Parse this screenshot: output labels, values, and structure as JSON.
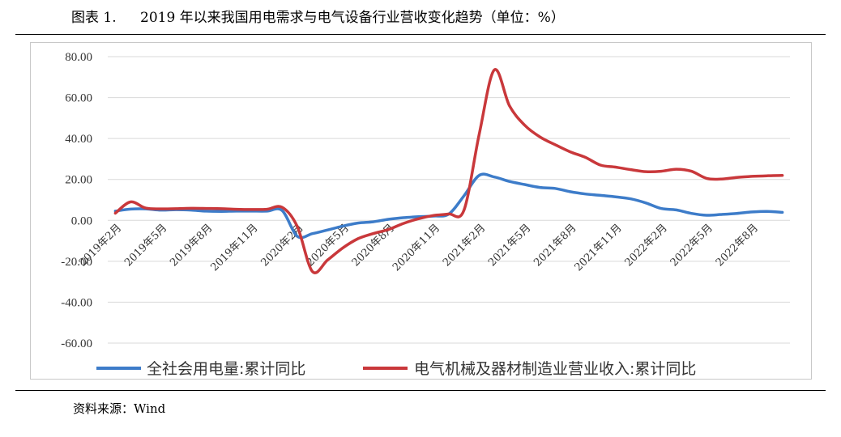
{
  "header": {
    "figure_label": "图表 1.",
    "title": "2019 年以来我国用电需求与电气设备行业营收变化趋势（单位：%）"
  },
  "footer": {
    "source": "资料来源：Wind"
  },
  "chart_data": {
    "type": "line",
    "ylim": [
      -60,
      80
    ],
    "yticks": [
      "80.00",
      "60.00",
      "40.00",
      "20.00",
      "0.00",
      "-20.00",
      "-40.00",
      "-60.00"
    ],
    "ytick_values": [
      80,
      60,
      40,
      20,
      0,
      -20,
      -40,
      -60
    ],
    "grid": true,
    "legend_position": "bottom",
    "x_ticks": [
      "2019年2月",
      "2019年5月",
      "2019年8月",
      "2019年11月",
      "2020年2月",
      "2020年5月",
      "2020年8月",
      "2020年11月",
      "2021年2月",
      "2021年5月",
      "2021年8月",
      "2021年11月",
      "2022年2月",
      "2022年5月",
      "2022年8月"
    ],
    "x": [
      "2019-02",
      "2019-03",
      "2019-04",
      "2019-05",
      "2019-06",
      "2019-07",
      "2019-08",
      "2019-09",
      "2019-10",
      "2019-11",
      "2019-12",
      "2020-01",
      "2020-02",
      "2020-03",
      "2020-04",
      "2020-05",
      "2020-06",
      "2020-07",
      "2020-08",
      "2020-09",
      "2020-10",
      "2020-11",
      "2020-12",
      "2021-01",
      "2021-02",
      "2021-03",
      "2021-04",
      "2021-05",
      "2021-06",
      "2021-07",
      "2021-08",
      "2021-09",
      "2021-10",
      "2021-11",
      "2021-12",
      "2022-01",
      "2022-02",
      "2022-03",
      "2022-04",
      "2022-05",
      "2022-06",
      "2022-07",
      "2022-08",
      "2022-09",
      "2022-10"
    ],
    "series": [
      {
        "name": "全社会用电量:累计同比",
        "color": "#3d7cc9",
        "values": [
          4.5,
          5.5,
          5.6,
          5.0,
          5.2,
          5.0,
          4.5,
          4.4,
          4.5,
          4.5,
          4.5,
          4.8,
          -7.8,
          -6.5,
          -4.7,
          -2.8,
          -1.3,
          -0.7,
          0.5,
          1.3,
          1.8,
          2.1,
          3.1,
          12.0,
          22.0,
          21.2,
          19.0,
          17.5,
          16.1,
          15.6,
          14.0,
          12.9,
          12.2,
          11.5,
          10.5,
          8.5,
          5.8,
          5.1,
          3.4,
          2.5,
          2.9,
          3.4,
          4.1,
          4.4,
          3.9
        ]
      },
      {
        "name": "电气机械及器材制造业营业收入:累计同比",
        "color": "#c9383b",
        "values": [
          3.5,
          9.0,
          6.0,
          5.6,
          5.7,
          5.9,
          5.8,
          5.7,
          5.4,
          5.3,
          5.4,
          6.4,
          -3.0,
          -25.0,
          -19.4,
          -13.5,
          -9.0,
          -6.5,
          -4.5,
          -1.5,
          0.8,
          2.4,
          3.1,
          5.0,
          42.0,
          73.5,
          56.0,
          46.5,
          40.8,
          37.0,
          33.5,
          30.8,
          27.0,
          26.0,
          24.8,
          23.8,
          24.0,
          25.0,
          24.0,
          20.5,
          20.2,
          21.0,
          21.5,
          21.8,
          22.0
        ]
      }
    ]
  }
}
